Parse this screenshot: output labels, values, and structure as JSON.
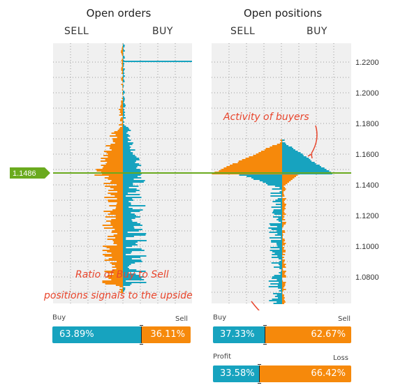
{
  "headers": {
    "open_orders": "Open orders",
    "open_positions": "Open positions",
    "sell": "SELL",
    "buy": "BUY"
  },
  "price_axis": {
    "ticks": [
      "1.2200",
      "1.2000",
      "1.1800",
      "1.1600",
      "1.1400",
      "1.1200",
      "1.1000",
      "1.0800"
    ],
    "current_price": "1.1486"
  },
  "annotations": {
    "activity": "Activity of buyers",
    "ratio_line1": "Ratio of Buy to Sell",
    "ratio_line2": "positions signals to the upside"
  },
  "orders_ratio": {
    "left_label": "Buy",
    "right_label": "Sell",
    "left_value": "63.89%",
    "right_value": "36.11%",
    "left_fraction": 0.6389
  },
  "positions_ratio": {
    "left_label": "Buy",
    "right_label": "Sell",
    "left_value": "37.33%",
    "right_value": "62.67%",
    "left_fraction": 0.3733
  },
  "profit_ratio": {
    "left_label": "Profit",
    "right_label": "Loss",
    "left_value": "33.58%",
    "right_value": "66.42%",
    "left_fraction": 0.3358
  },
  "colors": {
    "buy": "#17a3bf",
    "sell": "#f6890b",
    "price_line": "#6aaa1e",
    "annotation": "#e8452c"
  }
}
